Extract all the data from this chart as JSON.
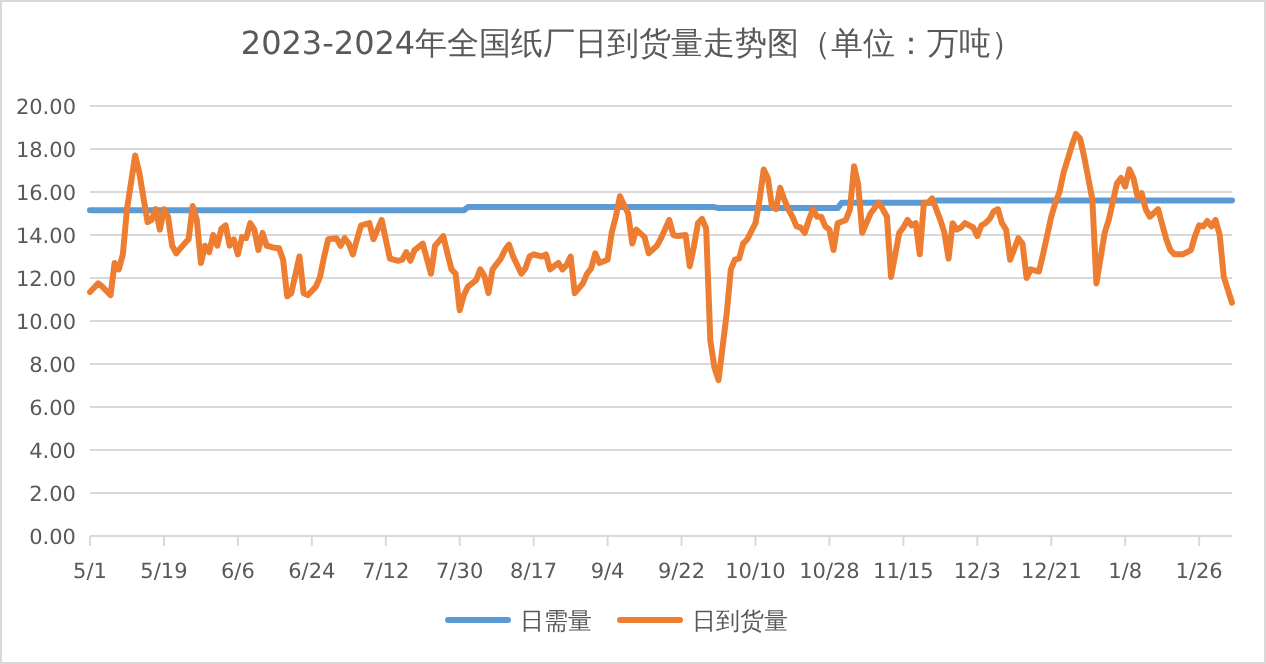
{
  "chart_data": {
    "type": "line",
    "title": "2023-2024年全国纸厂日到货量走势图（单位：万吨）",
    "xlim": [
      "2023-05-01",
      "2024-02-03"
    ],
    "xticks": [
      {
        "value": "2023-05-01",
        "label": "5/1"
      },
      {
        "value": "2023-05-19",
        "label": "5/19"
      },
      {
        "value": "2023-06-06",
        "label": "6/6"
      },
      {
        "value": "2023-06-24",
        "label": "6/24"
      },
      {
        "value": "2023-07-12",
        "label": "7/12"
      },
      {
        "value": "2023-07-30",
        "label": "7/30"
      },
      {
        "value": "2023-08-17",
        "label": "8/17"
      },
      {
        "value": "2023-09-04",
        "label": "9/4"
      },
      {
        "value": "2023-09-22",
        "label": "9/22"
      },
      {
        "value": "2023-10-10",
        "label": "10/10"
      },
      {
        "value": "2023-10-28",
        "label": "10/28"
      },
      {
        "value": "2023-11-15",
        "label": "11/15"
      },
      {
        "value": "2023-12-03",
        "label": "12/3"
      },
      {
        "value": "2023-12-21",
        "label": "12/21"
      },
      {
        "value": "2024-01-08",
        "label": "1/8"
      },
      {
        "value": "2024-01-26",
        "label": "1/26"
      }
    ],
    "ylim": [
      0,
      20
    ],
    "yticks": [
      {
        "value": 0,
        "label": "0.00"
      },
      {
        "value": 2,
        "label": "2.00"
      },
      {
        "value": 4,
        "label": "4.00"
      },
      {
        "value": 6,
        "label": "6.00"
      },
      {
        "value": 8,
        "label": "8.00"
      },
      {
        "value": 10,
        "label": "10.00"
      },
      {
        "value": 12,
        "label": "12.00"
      },
      {
        "value": 14,
        "label": "14.00"
      },
      {
        "value": 16,
        "label": "16.00"
      },
      {
        "value": 18,
        "label": "18.00"
      },
      {
        "value": 20,
        "label": "20.00"
      }
    ],
    "grid": "y",
    "legend": "bottom",
    "marker": "none",
    "line_style": "solid",
    "series": [
      {
        "name": "日需量",
        "color": "#5b9bd5",
        "x": [
          "2023-05-01",
          "2023-07-31",
          "2023-08-01",
          "2023-09-30",
          "2023-10-01",
          "2023-10-30",
          "2023-10-31",
          "2023-11-22",
          "2023-11-23",
          "2024-02-03"
        ],
        "values": [
          15.15,
          15.15,
          15.3,
          15.3,
          15.25,
          15.25,
          15.5,
          15.5,
          15.6,
          15.6
        ]
      },
      {
        "name": "日到货量",
        "color": "#ed7d31",
        "x": [
          "2023-05-01",
          "2023-05-03",
          "2023-05-04",
          "2023-05-06",
          "2023-05-07",
          "2023-05-08",
          "2023-05-09",
          "2023-05-10",
          "2023-05-12",
          "2023-05-13",
          "2023-05-15",
          "2023-05-16",
          "2023-05-17",
          "2023-05-18",
          "2023-05-19",
          "2023-05-20",
          "2023-05-21",
          "2023-05-22",
          "2023-05-24",
          "2023-05-25",
          "2023-05-26",
          "2023-05-27",
          "2023-05-28",
          "2023-05-29",
          "2023-05-30",
          "2023-05-31",
          "2023-06-01",
          "2023-06-02",
          "2023-06-03",
          "2023-06-04",
          "2023-06-05",
          "2023-06-06",
          "2023-06-07",
          "2023-06-08",
          "2023-06-09",
          "2023-06-10",
          "2023-06-11",
          "2023-06-12",
          "2023-06-13",
          "2023-06-15",
          "2023-06-16",
          "2023-06-17",
          "2023-06-18",
          "2023-06-19",
          "2023-06-21",
          "2023-06-22",
          "2023-06-23",
          "2023-06-25",
          "2023-06-26",
          "2023-06-27",
          "2023-06-28",
          "2023-06-30",
          "2023-07-01",
          "2023-07-02",
          "2023-07-03",
          "2023-07-04",
          "2023-07-05",
          "2023-07-06",
          "2023-07-08",
          "2023-07-09",
          "2023-07-10",
          "2023-07-11",
          "2023-07-12",
          "2023-07-13",
          "2023-07-15",
          "2023-07-16",
          "2023-07-17",
          "2023-07-18",
          "2023-07-19",
          "2023-07-21",
          "2023-07-23",
          "2023-07-24",
          "2023-07-26",
          "2023-07-27",
          "2023-07-28",
          "2023-07-29",
          "2023-07-30",
          "2023-07-31",
          "2023-08-01",
          "2023-08-03",
          "2023-08-04",
          "2023-08-05",
          "2023-08-06",
          "2023-08-07",
          "2023-08-09",
          "2023-08-10",
          "2023-08-11",
          "2023-08-12",
          "2023-08-14",
          "2023-08-15",
          "2023-08-16",
          "2023-08-17",
          "2023-08-19",
          "2023-08-20",
          "2023-08-21",
          "2023-08-23",
          "2023-08-24",
          "2023-08-25",
          "2023-08-26",
          "2023-08-27",
          "2023-08-29",
          "2023-08-30",
          "2023-08-31",
          "2023-09-01",
          "2023-09-02",
          "2023-09-04",
          "2023-09-05",
          "2023-09-06",
          "2023-09-07",
          "2023-09-09",
          "2023-09-10",
          "2023-09-11",
          "2023-09-13",
          "2023-09-14",
          "2023-09-16",
          "2023-09-17",
          "2023-09-19",
          "2023-09-20",
          "2023-09-21",
          "2023-09-23",
          "2023-09-24",
          "2023-09-25",
          "2023-09-26",
          "2023-09-27",
          "2023-09-28",
          "2023-09-29",
          "2023-09-30",
          "2023-10-01",
          "2023-10-03",
          "2023-10-04",
          "2023-10-05",
          "2023-10-06",
          "2023-10-07",
          "2023-10-08",
          "2023-10-10",
          "2023-10-11",
          "2023-10-12",
          "2023-10-13",
          "2023-10-14",
          "2023-10-15",
          "2023-10-16",
          "2023-10-17",
          "2023-10-18",
          "2023-10-19",
          "2023-10-20",
          "2023-10-21",
          "2023-10-22",
          "2023-10-23",
          "2023-10-24",
          "2023-10-25",
          "2023-10-26",
          "2023-10-27",
          "2023-10-28",
          "2023-10-29",
          "2023-10-30",
          "2023-11-01",
          "2023-11-02",
          "2023-11-03",
          "2023-11-04",
          "2023-11-05",
          "2023-11-06",
          "2023-11-07",
          "2023-11-09",
          "2023-11-10",
          "2023-11-11",
          "2023-11-12",
          "2023-11-14",
          "2023-11-15",
          "2023-11-16",
          "2023-11-17",
          "2023-11-18",
          "2023-11-19",
          "2023-11-20",
          "2023-11-21",
          "2023-11-22",
          "2023-11-24",
          "2023-11-25",
          "2023-11-26",
          "2023-11-27",
          "2023-11-28",
          "2023-11-29",
          "2023-11-30",
          "2023-12-02",
          "2023-12-03",
          "2023-12-04",
          "2023-12-05",
          "2023-12-06",
          "2023-12-07",
          "2023-12-08",
          "2023-12-09",
          "2023-12-10",
          "2023-12-11",
          "2023-12-13",
          "2023-12-14",
          "2023-12-15",
          "2023-12-16",
          "2023-12-18",
          "2023-12-19",
          "2023-12-21",
          "2023-12-22",
          "2023-12-23",
          "2023-12-24",
          "2023-12-26",
          "2023-12-27",
          "2023-12-28",
          "2023-12-29",
          "2023-12-31",
          "2024-01-01",
          "2024-01-03",
          "2024-01-04",
          "2024-01-06",
          "2024-01-07",
          "2024-01-08",
          "2024-01-09",
          "2024-01-10",
          "2024-01-11",
          "2024-01-12",
          "2024-01-13",
          "2024-01-14",
          "2024-01-16",
          "2024-01-18",
          "2024-01-19",
          "2024-01-20",
          "2024-01-22",
          "2024-01-24",
          "2024-01-25",
          "2024-01-26",
          "2024-01-27",
          "2024-01-28",
          "2024-01-29",
          "2024-01-30",
          "2024-01-31",
          "2024-02-01",
          "2024-02-03"
        ],
        "values": [
          11.35,
          11.75,
          11.6,
          11.2,
          12.7,
          12.4,
          13.1,
          15.2,
          17.7,
          16.9,
          14.6,
          14.7,
          15.2,
          14.25,
          15.2,
          14.85,
          13.5,
          13.15,
          13.6,
          13.8,
          15.35,
          14.7,
          12.7,
          13.5,
          13.2,
          14.0,
          13.5,
          14.3,
          14.45,
          13.5,
          13.8,
          13.1,
          13.9,
          13.85,
          14.55,
          14.25,
          13.3,
          14.1,
          13.5,
          13.4,
          13.4,
          12.85,
          11.15,
          11.3,
          13.0,
          11.3,
          11.2,
          11.6,
          12.05,
          13.0,
          13.8,
          13.85,
          13.5,
          13.85,
          13.6,
          13.1,
          13.8,
          14.45,
          14.55,
          13.8,
          14.25,
          14.7,
          13.8,
          12.9,
          12.8,
          12.85,
          13.2,
          12.8,
          13.3,
          13.6,
          12.2,
          13.5,
          13.95,
          13.15,
          12.4,
          12.2,
          10.5,
          11.2,
          11.6,
          11.9,
          12.4,
          12.1,
          11.3,
          12.4,
          12.9,
          13.3,
          13.55,
          13.0,
          12.2,
          12.45,
          13.0,
          13.1,
          13.0,
          13.1,
          12.4,
          12.7,
          12.4,
          12.6,
          13.0,
          11.3,
          11.75,
          12.2,
          12.45,
          13.15,
          12.7,
          12.85,
          14.1,
          14.85,
          15.8,
          15.0,
          13.6,
          14.25,
          13.9,
          13.15,
          13.5,
          13.85,
          14.7,
          14.0,
          13.95,
          14.0,
          12.55,
          13.45,
          14.55,
          14.75,
          14.3,
          9.1,
          7.85,
          7.25,
          10.35,
          12.4,
          12.85,
          12.9,
          13.6,
          13.8,
          14.55,
          15.65,
          17.05,
          16.65,
          15.35,
          15.2,
          16.2,
          15.65,
          15.2,
          14.85,
          14.4,
          14.35,
          14.1,
          14.7,
          15.2,
          14.85,
          14.85,
          14.4,
          14.25,
          13.3,
          14.55,
          14.7,
          15.2,
          17.2,
          16.35,
          14.1,
          14.55,
          15.0,
          15.5,
          15.2,
          14.85,
          12.05,
          14.1,
          14.35,
          14.7,
          14.45,
          14.55,
          13.1,
          15.5,
          15.5,
          15.7,
          14.7,
          14.1,
          12.9,
          14.55,
          14.25,
          14.35,
          14.55,
          14.35,
          13.95,
          14.45,
          14.55,
          14.75,
          15.1,
          15.2,
          14.55,
          14.25,
          12.85,
          13.85,
          13.6,
          12.0,
          12.4,
          12.3,
          13.1,
          14.85,
          15.5,
          16.0,
          16.9,
          18.15,
          18.7,
          18.5,
          17.65,
          15.65,
          11.75,
          14.1,
          14.7,
          16.4,
          16.65,
          16.25,
          17.05,
          16.65,
          15.8,
          15.95,
          15.2,
          14.85,
          15.2,
          13.8,
          13.3,
          13.1,
          13.1,
          13.3,
          13.95,
          14.45,
          14.4,
          14.65,
          14.4,
          14.7,
          14.0,
          12.05,
          10.85
        ]
      }
    ]
  }
}
